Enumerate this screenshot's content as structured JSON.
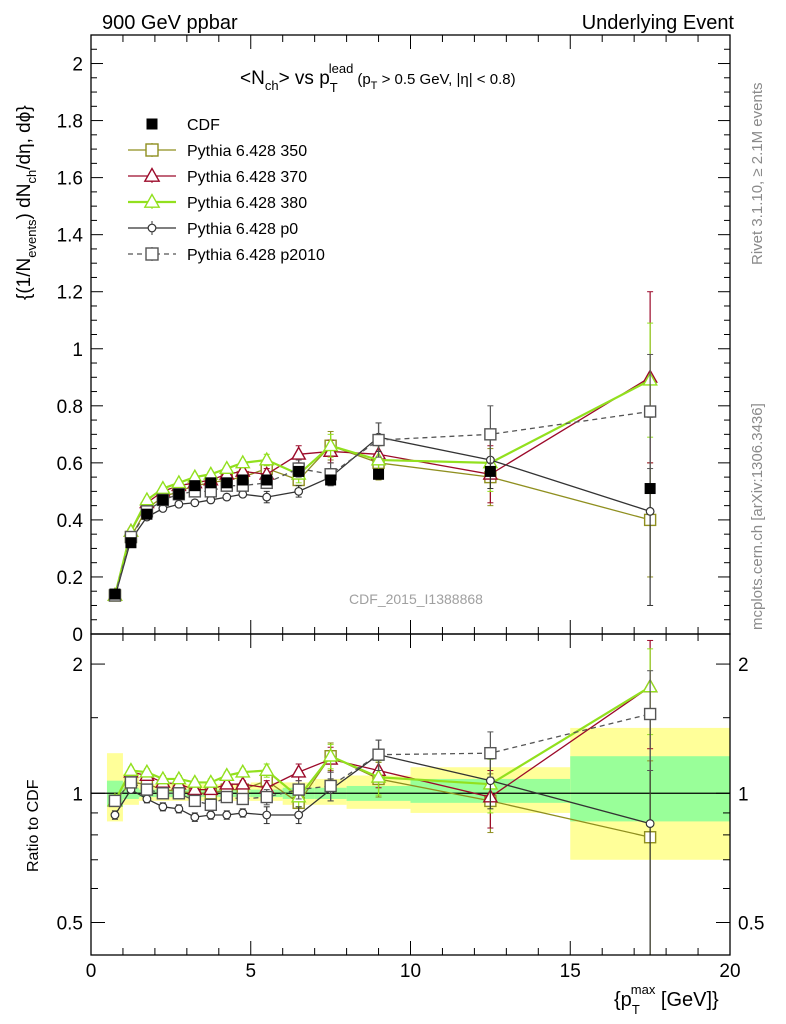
{
  "header": {
    "left_label": "900 GeV ppbar",
    "right_label": "Underlying Event"
  },
  "side_labels": {
    "rivet": "Rivet 3.1.10, ≥ 2.1M events",
    "mcplots": "mcplots.cern.ch [arXiv:1306.3436]"
  },
  "watermark": "CDF_2015_I1388868",
  "colors": {
    "cdf": "#000000",
    "p350": "#8f8f1f",
    "p370": "#9c0a2a",
    "p380": "#92e01e",
    "p0": "#333333",
    "p2010": "#555555",
    "band_inner": "#99ff99",
    "band_outer": "#ffff99"
  },
  "chart_data": [
    {
      "type": "scatter",
      "panel": "main",
      "title_parts": {
        "main": "<N",
        "ch_sub": "ch",
        "mid": "> vs p",
        "T_sub": "T",
        "lead_sup": "lead",
        "cut_open": "(p",
        "cut_T_sub": "T",
        "cut_rest": " > 0.5 GeV, |η| < 0.8)"
      },
      "ylabel_parts": {
        "a": "{(1/N",
        "events_sub": "events",
        "b": ") dN",
        "ch_sub": "ch",
        "c": "/dη, dϕ}"
      },
      "xlim": [
        0,
        20
      ],
      "ylim": [
        0,
        2.1
      ],
      "y_ticks": [
        "0",
        "0.2",
        "0.4",
        "0.6",
        "0.8",
        "1",
        "1.2",
        "1.4",
        "1.6",
        "1.8",
        "2"
      ],
      "legend_placement": "top-left",
      "series": [
        {
          "name": "CDF",
          "key": "cdf",
          "marker": "filled-square",
          "x": [
            0.75,
            1.25,
            1.75,
            2.25,
            2.75,
            3.25,
            3.75,
            4.25,
            4.75,
            5.5,
            6.5,
            7.5,
            9.0,
            12.5,
            17.5
          ],
          "y": [
            0.14,
            0.32,
            0.42,
            0.47,
            0.49,
            0.52,
            0.53,
            0.53,
            0.54,
            0.54,
            0.57,
            0.54,
            0.56,
            0.57,
            0.51
          ]
        },
        {
          "name": "Pythia 6.428 350",
          "key": "p350",
          "marker": "open-square",
          "line": "solid",
          "x": [
            0.75,
            1.25,
            1.75,
            2.25,
            2.75,
            3.25,
            3.75,
            4.25,
            4.75,
            5.5,
            6.5,
            7.5,
            9.0,
            12.5,
            17.5
          ],
          "y": [
            0.135,
            0.34,
            0.44,
            0.48,
            0.5,
            0.52,
            0.53,
            0.54,
            0.55,
            0.58,
            0.54,
            0.66,
            0.6,
            0.55,
            0.4
          ],
          "err": [
            0.01,
            0.01,
            0.01,
            0.01,
            0.01,
            0.01,
            0.01,
            0.01,
            0.01,
            0.02,
            0.03,
            0.05,
            0.06,
            0.1,
            0.2
          ]
        },
        {
          "name": "Pythia 6.428 370",
          "key": "p370",
          "marker": "open-triangle",
          "line": "solid",
          "x": [
            0.75,
            1.25,
            1.75,
            2.25,
            2.75,
            3.25,
            3.75,
            4.25,
            4.75,
            5.5,
            6.5,
            7.5,
            9.0,
            12.5,
            17.5
          ],
          "y": [
            0.135,
            0.36,
            0.46,
            0.5,
            0.52,
            0.53,
            0.54,
            0.56,
            0.57,
            0.56,
            0.63,
            0.64,
            0.63,
            0.56,
            0.9
          ],
          "err": [
            0.01,
            0.01,
            0.01,
            0.01,
            0.01,
            0.01,
            0.01,
            0.01,
            0.01,
            0.02,
            0.03,
            0.04,
            0.06,
            0.1,
            0.3
          ]
        },
        {
          "name": "Pythia 6.428 380",
          "key": "p380",
          "marker": "open-triangle",
          "line": "solid",
          "x": [
            0.75,
            1.25,
            1.75,
            2.25,
            2.75,
            3.25,
            3.75,
            4.25,
            4.75,
            5.5,
            6.5,
            7.5,
            9.0,
            12.5,
            17.5
          ],
          "y": [
            0.135,
            0.36,
            0.47,
            0.51,
            0.53,
            0.55,
            0.56,
            0.58,
            0.6,
            0.61,
            0.56,
            0.66,
            0.61,
            0.6,
            0.89
          ],
          "err": [
            0.01,
            0.01,
            0.01,
            0.01,
            0.01,
            0.01,
            0.01,
            0.01,
            0.01,
            0.02,
            0.03,
            0.04,
            0.06,
            0.1,
            0.2
          ]
        },
        {
          "name": "Pythia 6.428 p0",
          "key": "p0",
          "marker": "open-circle",
          "line": "solid",
          "x": [
            0.75,
            1.25,
            1.75,
            2.25,
            2.75,
            3.25,
            3.75,
            4.25,
            4.75,
            5.5,
            6.5,
            7.5,
            9.0,
            12.5,
            17.5
          ],
          "y": [
            0.13,
            0.33,
            0.41,
            0.44,
            0.455,
            0.46,
            0.47,
            0.48,
            0.49,
            0.48,
            0.5,
            0.55,
            0.69,
            0.61,
            0.43
          ],
          "err": [
            0.01,
            0.01,
            0.01,
            0.01,
            0.01,
            0.01,
            0.01,
            0.01,
            0.01,
            0.02,
            0.02,
            0.03,
            0.05,
            0.1,
            0.33
          ]
        },
        {
          "name": "Pythia 6.428 p2010",
          "key": "p2010",
          "marker": "open-square",
          "line": "dashed",
          "x": [
            0.75,
            1.25,
            1.75,
            2.25,
            2.75,
            3.25,
            3.75,
            4.25,
            4.75,
            5.5,
            6.5,
            7.5,
            9.0,
            12.5,
            17.5
          ],
          "y": [
            0.135,
            0.34,
            0.43,
            0.47,
            0.49,
            0.5,
            0.5,
            0.52,
            0.52,
            0.53,
            0.58,
            0.56,
            0.68,
            0.7,
            0.78
          ],
          "err": [
            0.01,
            0.01,
            0.01,
            0.01,
            0.01,
            0.01,
            0.01,
            0.01,
            0.01,
            0.02,
            0.03,
            0.04,
            0.06,
            0.1,
            0.2
          ]
        }
      ]
    },
    {
      "type": "scatter",
      "panel": "ratio",
      "ylabel": "Ratio to CDF",
      "xlabel_parts": {
        "open": "{p",
        "T_sub": "T",
        "max_sup": "max",
        "rest": " [GeV]}"
      },
      "xlim": [
        0,
        20
      ],
      "ylim": [
        0.42,
        2.35
      ],
      "log_y": true,
      "x_ticks": [
        "0",
        "5",
        "10",
        "15",
        "20"
      ],
      "y_ticks": [
        "0.5",
        "1",
        "2"
      ],
      "bands": {
        "x_lo": [
          0.5,
          1.0,
          1.5,
          2.0,
          2.5,
          3.0,
          3.5,
          4.0,
          4.5,
          5.0,
          6.0,
          7.0,
          8.0,
          10.0,
          15.0
        ],
        "x_hi": [
          1.0,
          1.5,
          2.0,
          2.5,
          3.0,
          3.5,
          4.0,
          4.5,
          5.0,
          6.0,
          7.0,
          8.0,
          10.0,
          15.0,
          20.0
        ],
        "inner_lo": [
          0.93,
          0.97,
          0.98,
          0.98,
          0.98,
          0.98,
          0.98,
          0.98,
          0.98,
          0.98,
          0.97,
          0.97,
          0.96,
          0.95,
          0.86
        ],
        "inner_hi": [
          1.07,
          1.03,
          1.02,
          1.02,
          1.02,
          1.02,
          1.02,
          1.02,
          1.02,
          1.02,
          1.03,
          1.03,
          1.04,
          1.08,
          1.22
        ],
        "outer_lo": [
          0.86,
          0.94,
          0.96,
          0.96,
          0.96,
          0.96,
          0.96,
          0.96,
          0.96,
          0.96,
          0.94,
          0.94,
          0.92,
          0.9,
          0.7
        ],
        "outer_hi": [
          1.24,
          1.11,
          1.05,
          1.05,
          1.05,
          1.05,
          1.05,
          1.05,
          1.05,
          1.06,
          1.06,
          1.08,
          1.1,
          1.15,
          1.42
        ]
      },
      "series": [
        {
          "key": "p350",
          "marker": "open-square",
          "line": "solid",
          "y": [
            0.96,
            1.06,
            1.05,
            1.02,
            1.01,
            1.0,
            1.0,
            1.02,
            1.02,
            1.07,
            0.95,
            1.22,
            1.08,
            0.96,
            0.79
          ],
          "err": [
            0.02,
            0.02,
            0.02,
            0.02,
            0.02,
            0.02,
            0.02,
            0.02,
            0.02,
            0.04,
            0.05,
            0.09,
            0.1,
            0.15,
            0.4
          ]
        },
        {
          "key": "p370",
          "marker": "open-triangle",
          "line": "solid",
          "y": [
            0.96,
            1.12,
            1.1,
            1.06,
            1.05,
            1.02,
            1.02,
            1.05,
            1.05,
            1.03,
            1.12,
            1.2,
            1.13,
            0.98,
            1.77
          ],
          "err": [
            0.02,
            0.02,
            0.02,
            0.02,
            0.02,
            0.02,
            0.02,
            0.02,
            0.02,
            0.04,
            0.05,
            0.08,
            0.1,
            0.15,
            0.5
          ]
        },
        {
          "key": "p380",
          "marker": "open-triangle",
          "line": "solid",
          "y": [
            0.96,
            1.13,
            1.12,
            1.08,
            1.08,
            1.06,
            1.06,
            1.1,
            1.12,
            1.13,
            0.98,
            1.22,
            1.09,
            1.05,
            1.77
          ],
          "err": [
            0.02,
            0.02,
            0.02,
            0.02,
            0.02,
            0.02,
            0.02,
            0.02,
            0.02,
            0.04,
            0.05,
            0.08,
            0.1,
            0.15,
            0.4
          ]
        },
        {
          "key": "p0",
          "marker": "open-circle",
          "line": "solid",
          "y": [
            0.89,
            1.02,
            0.97,
            0.93,
            0.92,
            0.88,
            0.89,
            0.89,
            0.9,
            0.89,
            0.89,
            1.02,
            1.23,
            1.07,
            0.85
          ],
          "err": [
            0.02,
            0.02,
            0.02,
            0.02,
            0.02,
            0.02,
            0.02,
            0.02,
            0.02,
            0.04,
            0.04,
            0.06,
            0.1,
            0.15,
            0.65
          ]
        },
        {
          "key": "p2010",
          "marker": "open-square",
          "line": "dashed",
          "y": [
            0.96,
            1.06,
            1.02,
            1.0,
            1.0,
            0.96,
            0.94,
            0.98,
            0.97,
            0.98,
            1.02,
            1.04,
            1.23,
            1.24,
            1.53
          ],
          "err": [
            0.02,
            0.02,
            0.02,
            0.02,
            0.02,
            0.02,
            0.02,
            0.02,
            0.02,
            0.04,
            0.05,
            0.08,
            0.1,
            0.15,
            0.4
          ]
        }
      ]
    }
  ]
}
